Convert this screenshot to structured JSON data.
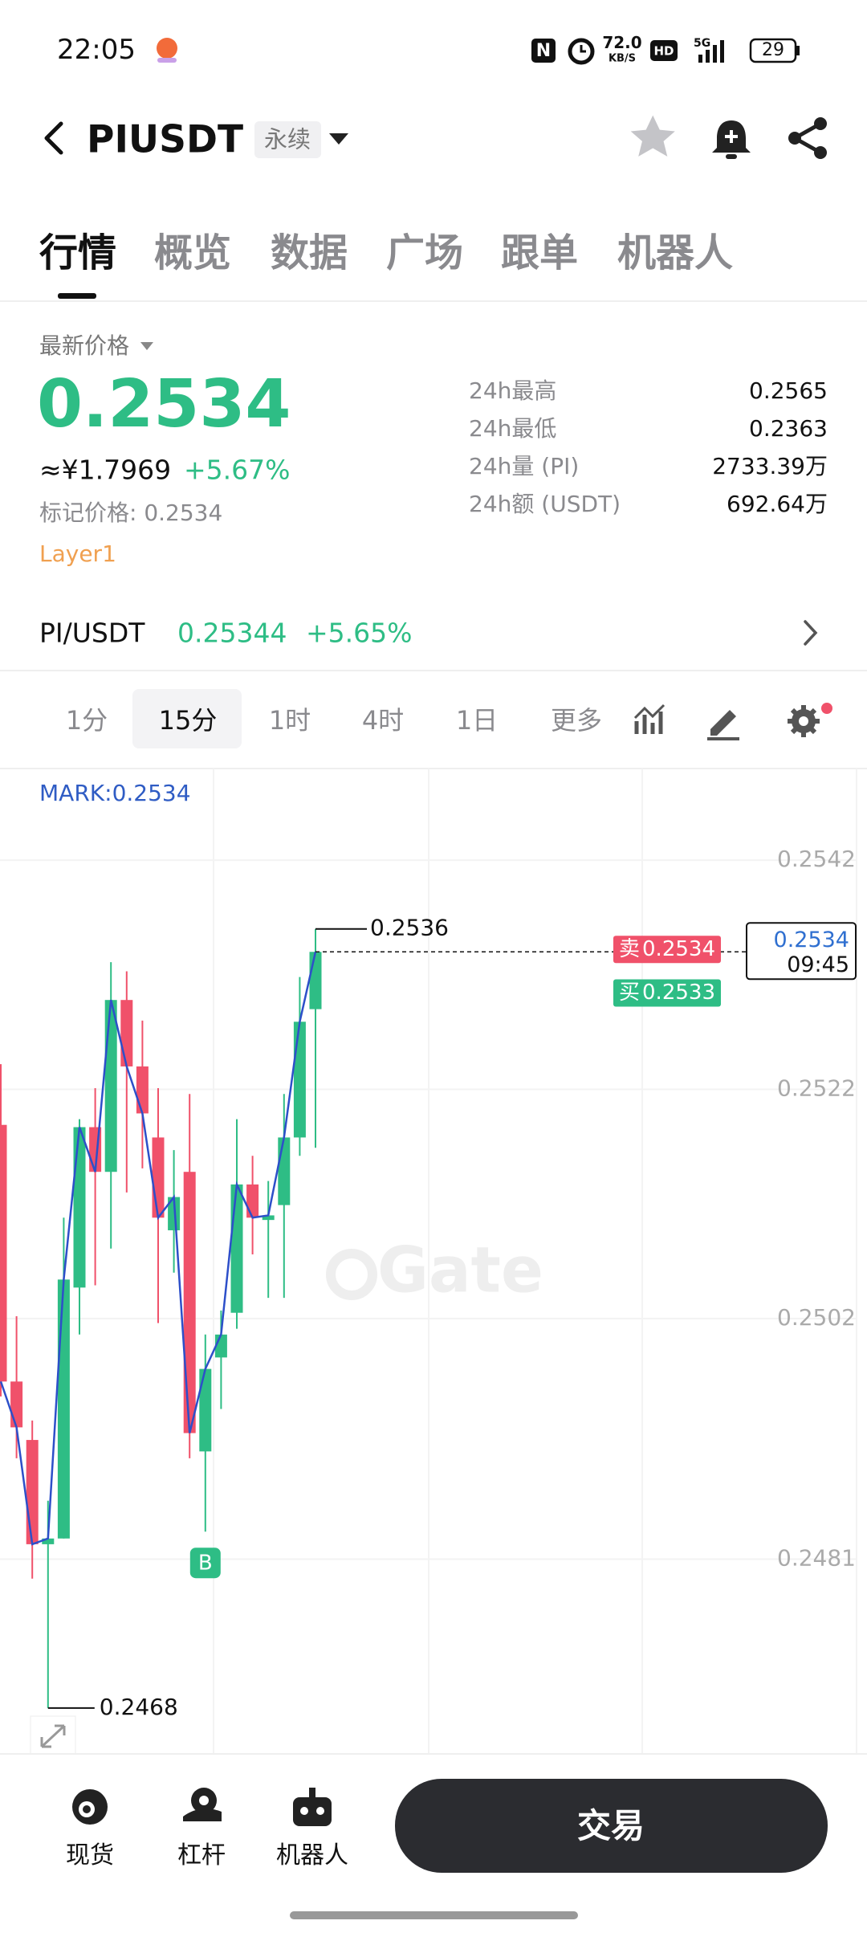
{
  "status_bar": {
    "time": "22:05",
    "speed": "72.0",
    "speed_unit": "KB/S",
    "network": "5G",
    "battery": "29"
  },
  "header": {
    "symbol": "PIUSDT",
    "contract_type": "永续"
  },
  "tabs": [
    "行情",
    "概览",
    "数据",
    "广场",
    "跟单",
    "机器人"
  ],
  "price_panel": {
    "label": "最新价格",
    "last_price": "0.2534",
    "cny_price": "≈¥1.7969",
    "change": "+5.67%",
    "mark_price": "标记价格: 0.2534",
    "tag": "Layer1",
    "stats": [
      {
        "label": "24h最高",
        "value": "0.2565"
      },
      {
        "label": "24h最低",
        "value": "0.2363"
      },
      {
        "label": "24h量 (PI)",
        "value": "2733.39万"
      },
      {
        "label": "24h额 (USDT)",
        "value": "692.64万"
      }
    ]
  },
  "spot_row": {
    "pair": "PI/USDT",
    "price": "0.25344",
    "change": "+5.65%"
  },
  "intervals": [
    "1分",
    "15分",
    "1时",
    "4时",
    "1日",
    "更多"
  ],
  "chart_data": {
    "type": "candlestick",
    "mark_label": "MARK:0.2534",
    "watermark": "Gate",
    "ylim": [
      0.2464,
      0.255
    ],
    "yticks": [
      0.2542,
      0.2522,
      0.2502,
      0.2481
    ],
    "up_color": "#2ebd85",
    "down_color": "#f0516a",
    "line_color": "#2d4fc9",
    "open": [
      0.25189,
      0.24965,
      0.24914,
      0.24823,
      0.24828,
      0.25047,
      0.25187,
      0.25148,
      0.25298,
      0.2524,
      0.25178,
      0.25097,
      0.25148,
      0.24904,
      0.24986,
      0.25025,
      0.25137,
      0.25106,
      0.25119,
      0.25178,
      0.2529
    ],
    "high": [
      0.25242,
      0.25022,
      0.24931,
      0.24861,
      0.25108,
      0.25194,
      0.25221,
      0.25331,
      0.25323,
      0.2528,
      0.25221,
      0.25167,
      0.25216,
      0.25006,
      0.25027,
      0.25194,
      0.25162,
      0.2514,
      0.25216,
      0.25318,
      0.2536
    ],
    "low": [
      0.24952,
      0.24898,
      0.24793,
      0.2468,
      0.24828,
      0.25006,
      0.25049,
      0.25081,
      0.2513,
      0.25151,
      0.25016,
      0.2506,
      0.24898,
      0.24834,
      0.24941,
      0.25011,
      0.25076,
      0.25038,
      0.25038,
      0.25162,
      0.25169
    ],
    "close": [
      0.24965,
      0.24925,
      0.24823,
      0.24828,
      0.25054,
      0.25187,
      0.25148,
      0.25298,
      0.2524,
      0.25199,
      0.25108,
      0.25126,
      0.2492,
      0.24976,
      0.25006,
      0.25137,
      0.25108,
      0.2511,
      0.25178,
      0.25279,
      0.2534
    ],
    "high_marker": 0.2536,
    "low_marker": 0.2468,
    "last_price": 0.2534,
    "last_time": "09:45",
    "ask_label": "卖",
    "ask": 0.2534,
    "bid_label": "买",
    "bid": 0.2533,
    "buy_marker": "B"
  },
  "bottom_nav": {
    "items": [
      "现货",
      "杠杆",
      "机器人"
    ],
    "trade_button": "交易"
  }
}
